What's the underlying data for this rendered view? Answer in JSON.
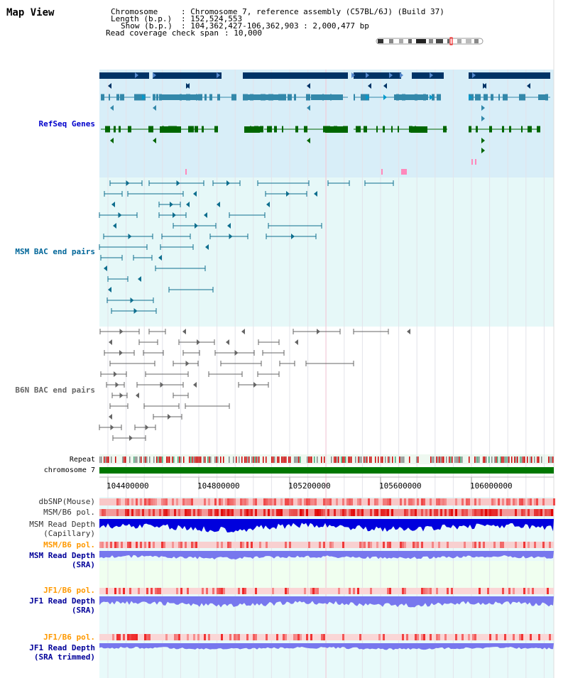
{
  "header": {
    "title": "Map View",
    "chromosome_key": "Chromosome",
    "chromosome_val": ": Chromosome 7, reference assembly (C57BL/6J) (Build 37)",
    "length_key": "Length (b.p.)",
    "length_val": ": 152,524,553",
    "show_key": "Show (b.p.)",
    "show_val": ": 104,362,427-106,362,903 : 2,000,477 bp",
    "coverage_key": "Read coverage check span",
    "coverage_val": ": 10,000"
  },
  "tracks": {
    "refseq": {
      "label": "RefSeq Genes",
      "color": "#0000cc"
    },
    "msm_bac": {
      "label": "MSM BAC end pairs",
      "color": "#006699"
    },
    "b6n_bac": {
      "label": "B6N BAC end pairs",
      "color": "#666666"
    },
    "repeat": {
      "label": "Repeat"
    },
    "chromosome": {
      "label": "chromosome 7"
    },
    "dbsnp": {
      "label": "dbSNP(Mouse)"
    },
    "msm_b6_pol": {
      "label": "MSM/B6 pol."
    },
    "msm_depth_cap": {
      "line1": "MSM Read Depth",
      "line2": "(Capillary)"
    },
    "msm_b6_pol2": {
      "label": "MSM/B6 pol."
    },
    "msm_depth_sra": {
      "line1": "MSM Read Depth",
      "line2": "(SRA)"
    },
    "jf1_b6_pol": {
      "label": "JF1/B6 pol."
    },
    "jf1_depth_sra": {
      "line1": "JF1 Read Depth",
      "line2": "(SRA)"
    },
    "jf1_b6_pol2": {
      "label": "JF1/B6 pol."
    },
    "jf1_depth_trim": {
      "line1": "JF1 Read Depth",
      "line2": "(SRA trimmed)"
    }
  },
  "axis": {
    "ticks": [
      "104400000",
      "104800000",
      "105200000",
      "105600000",
      "106000000"
    ]
  },
  "colors": {
    "refseq_bg": "#d8eef8",
    "bac_bg": "#e6f8f8",
    "navy": "#003366",
    "teal": "#3388aa",
    "green": "#006600",
    "orange": "#ff9900",
    "blue_label": "#000099",
    "depth_blue": "#0000dd",
    "depth_light": "#7777ee"
  }
}
